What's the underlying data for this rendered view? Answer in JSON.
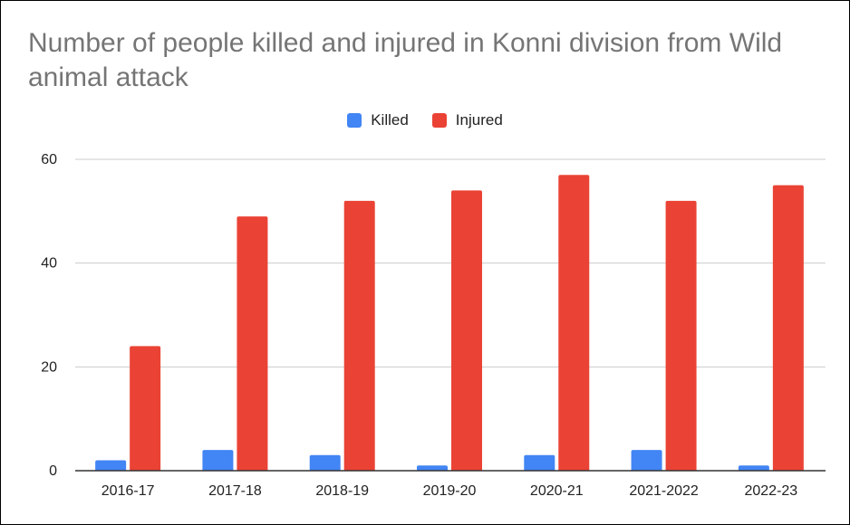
{
  "chart_data": {
    "type": "bar",
    "title": "Number of people killed and injured in Konni division from Wild animal attack",
    "xlabel": "",
    "ylabel": "",
    "categories": [
      "2016-17",
      "2017-18",
      "2018-19",
      "2019-20",
      "2020-21",
      "2021-2022",
      "2022-23"
    ],
    "series": [
      {
        "name": "Killed",
        "values": [
          2,
          4,
          3,
          1,
          3,
          4,
          1
        ],
        "color": "#4285F4"
      },
      {
        "name": "Injured",
        "values": [
          24,
          49,
          52,
          54,
          57,
          52,
          55
        ],
        "color": "#EA4335"
      }
    ],
    "ylim": [
      0,
      60
    ],
    "yticks": [
      0,
      20,
      40,
      60
    ],
    "grid": true,
    "legend_position": "top"
  }
}
